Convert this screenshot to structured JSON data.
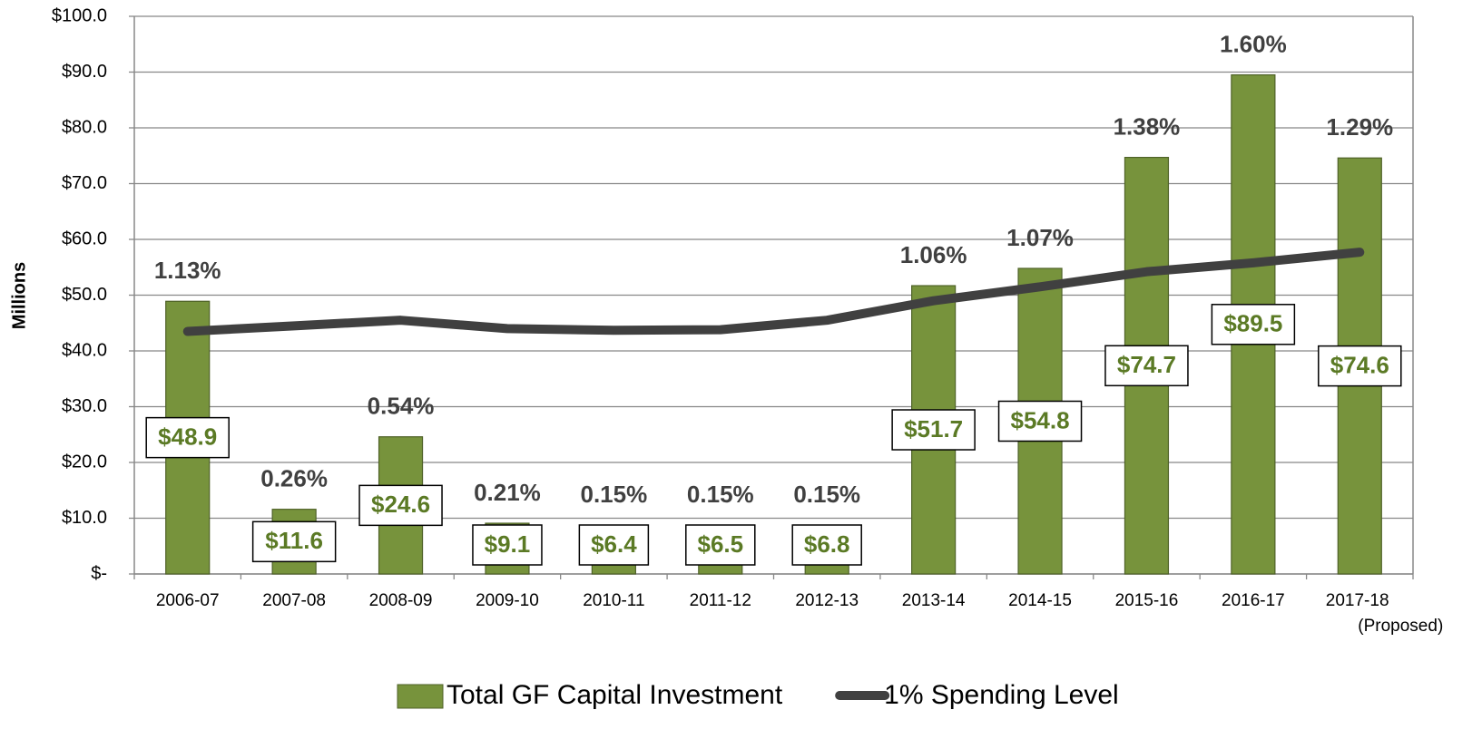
{
  "chart_data": {
    "type": "bar",
    "y_axis_label": "Millions",
    "categories": [
      "2006-07",
      "2007-08",
      "2008-09",
      "2009-10",
      "2010-11",
      "2011-12",
      "2012-13",
      "2013-14",
      "2014-15",
      "2015-16",
      "2016-17",
      "2017-18 (Proposed)"
    ],
    "series": [
      {
        "name": "Total GF Capital Investment",
        "type": "bar",
        "color": "#77933c",
        "values": [
          48.9,
          11.6,
          24.6,
          9.1,
          6.4,
          6.5,
          6.8,
          51.7,
          54.8,
          74.7,
          89.5,
          74.6
        ],
        "value_labels": [
          "$48.9",
          "$11.6",
          "$24.6",
          "$9.1",
          "$6.4",
          "$6.5",
          "$6.8",
          "$51.7",
          "$54.8",
          "$74.7",
          "$89.5",
          "$74.6"
        ]
      },
      {
        "name": "1% Spending Level",
        "type": "line",
        "color": "#404040",
        "values": [
          43.5,
          44.5,
          45.5,
          44.0,
          43.7,
          43.8,
          45.5,
          49.0,
          51.5,
          54.2,
          55.8,
          57.7
        ]
      }
    ],
    "annotations": [
      "1.13%",
      "0.26%",
      "0.54%",
      "0.21%",
      "0.15%",
      "0.15%",
      "0.15%",
      "1.06%",
      "1.07%",
      "1.38%",
      "1.60%",
      "1.29%"
    ],
    "ylim": [
      0,
      100
    ],
    "yticks": [
      {
        "value": 0,
        "label": "$-"
      },
      {
        "value": 10,
        "label": "$10.0"
      },
      {
        "value": 20,
        "label": "$20.0"
      },
      {
        "value": 30,
        "label": "$30.0"
      },
      {
        "value": 40,
        "label": "$40.0"
      },
      {
        "value": 50,
        "label": "$50.0"
      },
      {
        "value": 60,
        "label": "$60.0"
      },
      {
        "value": 70,
        "label": "$70.0"
      },
      {
        "value": 80,
        "label": "$80.0"
      },
      {
        "value": 90,
        "label": "$90.0"
      },
      {
        "value": 100,
        "label": "$100.0"
      }
    ],
    "grid": true,
    "legend": "bottom"
  }
}
